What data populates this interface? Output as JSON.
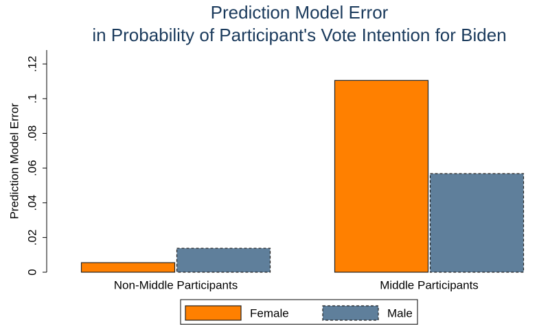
{
  "chart_data": {
    "type": "bar",
    "title": [
      "Prediction Model Error",
      "in Probability of Participant's Vote Intention for Biden"
    ],
    "y_label": "Prediction Model Error",
    "categories": [
      "Non-Middle Participants",
      "Middle Participants"
    ],
    "series": [
      {
        "name": "Female",
        "color": "#ff8000",
        "line_style": "solid",
        "values": [
          0.0055,
          0.1105
        ]
      },
      {
        "name": "Male",
        "color": "#5f7f9b",
        "line_style": "dashed",
        "values": [
          0.0138,
          0.0568
        ]
      }
    ],
    "ylim": [
      0,
      0.128
    ],
    "yticks": [
      0,
      {
        "value": 0.02,
        "label": ".02"
      },
      {
        "value": 0.04,
        "label": ".04"
      },
      {
        "value": 0.06,
        "label": ".06"
      },
      {
        "value": 0.08,
        "label": ".08"
      },
      {
        "value": 0.1,
        "label": ".1"
      },
      {
        "value": 0.12,
        "label": ".12"
      }
    ],
    "legend": "bottom"
  }
}
